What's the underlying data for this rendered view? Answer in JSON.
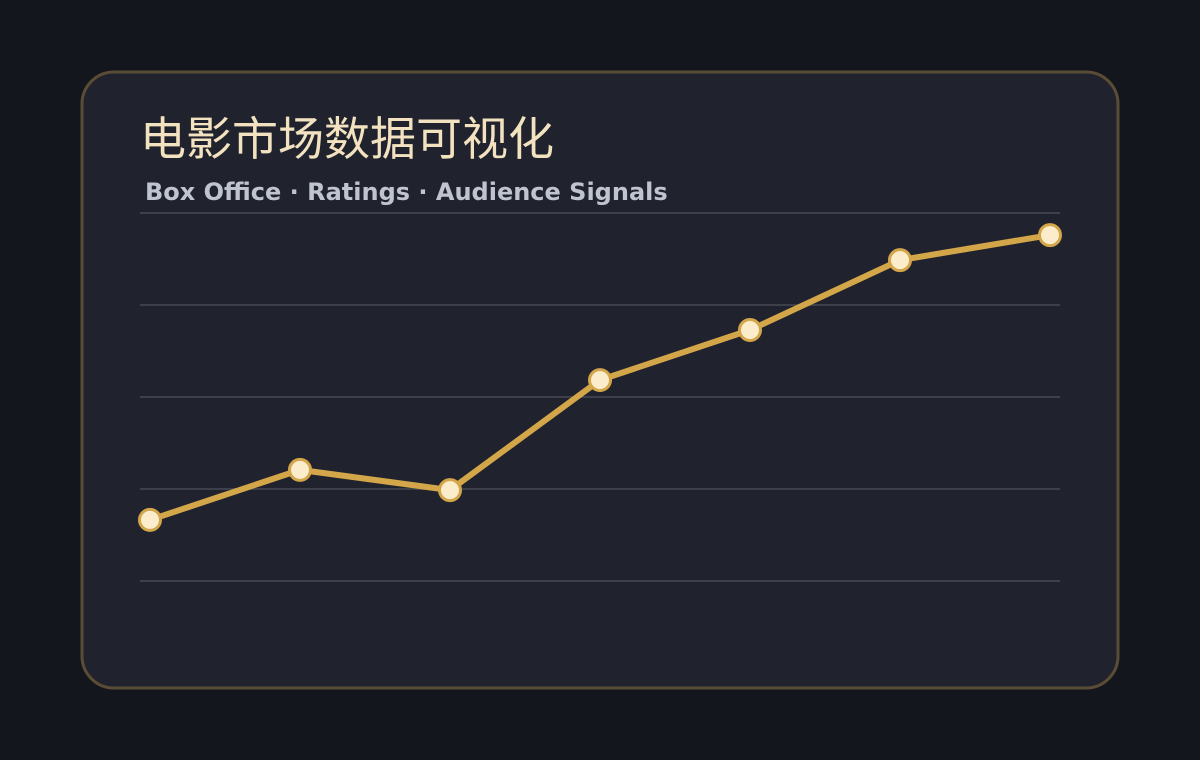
{
  "chart_data": {
    "type": "line",
    "title": "电影市场数据可视化",
    "subtitle": "Box Office · Ratings · Audience Signals",
    "categories": [
      null,
      null,
      null,
      null,
      null,
      null,
      null
    ],
    "values": [
      16.6,
      30.2,
      24.7,
      54.6,
      68.2,
      87.2,
      94.0
    ],
    "color": "#d4a64a",
    "ylim": [
      0,
      100
    ],
    "yticks": [
      0,
      25,
      50,
      75,
      100
    ],
    "grid": true
  }
}
